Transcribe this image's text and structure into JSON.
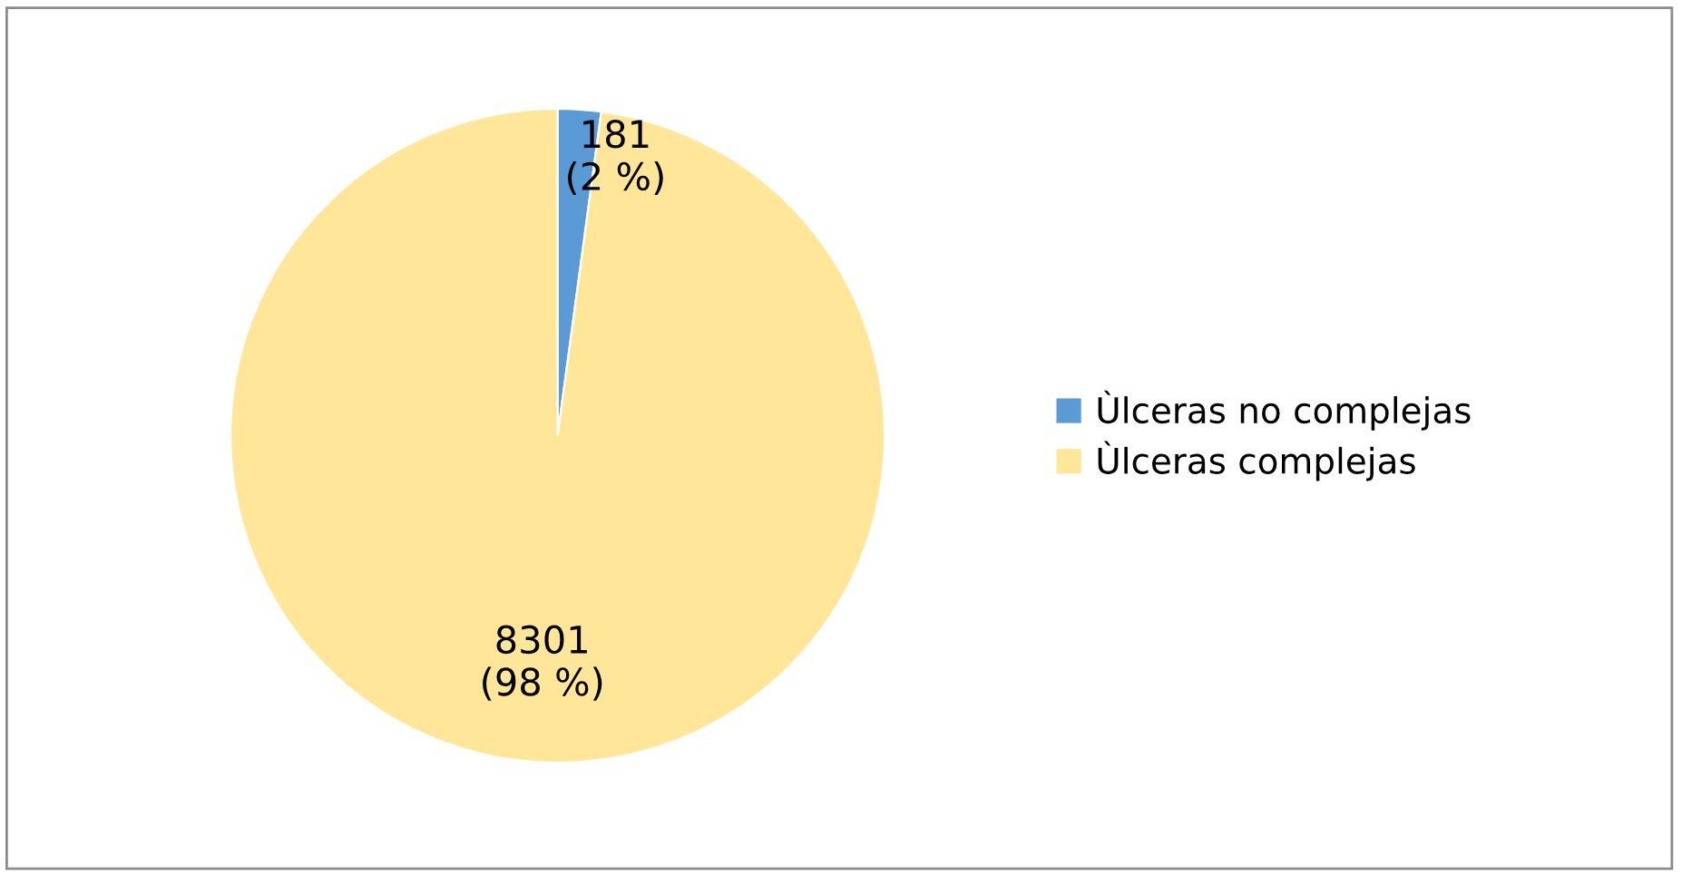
{
  "chart_data": {
    "type": "pie",
    "categories": [
      "Ùlceras no complejas",
      "Ùlceras complejas"
    ],
    "values": [
      181,
      8301
    ],
    "colors": [
      "#5b9bd5",
      "#ffe699"
    ],
    "value_labels": [
      "181\n(2 %)",
      "8301\n(98 %)"
    ],
    "legend": "right"
  }
}
